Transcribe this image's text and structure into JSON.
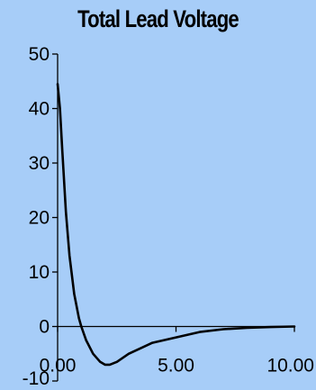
{
  "chart_data": {
    "type": "line",
    "title": "Total Lead Voltage",
    "xlabel": "",
    "ylabel": "",
    "xlim": [
      0,
      10
    ],
    "ylim": [
      -10,
      50
    ],
    "x_ticks": [
      {
        "value": 0,
        "label": "0.00"
      },
      {
        "value": 5,
        "label": "5.00"
      },
      {
        "value": 10,
        "label": "10.00"
      }
    ],
    "y_ticks": [
      {
        "value": 50,
        "label": "50"
      },
      {
        "value": 40,
        "label": "40"
      },
      {
        "value": 30,
        "label": "30"
      },
      {
        "value": 20,
        "label": "20"
      },
      {
        "value": 10,
        "label": "10"
      },
      {
        "value": 0,
        "label": "0"
      },
      {
        "value": -10,
        "label": "-10"
      }
    ],
    "grid": false,
    "legend": "none",
    "series": [
      {
        "values": [
          {
            "x": 0.0,
            "y": 44.5
          },
          {
            "x": 0.1,
            "y": 40
          },
          {
            "x": 0.2,
            "y": 32
          },
          {
            "x": 0.35,
            "y": 21
          },
          {
            "x": 0.5,
            "y": 13
          },
          {
            "x": 0.7,
            "y": 6
          },
          {
            "x": 0.9,
            "y": 1.5
          },
          {
            "x": 1.0,
            "y": 0
          },
          {
            "x": 1.2,
            "y": -2.5
          },
          {
            "x": 1.5,
            "y": -5
          },
          {
            "x": 1.8,
            "y": -6.5
          },
          {
            "x": 2.0,
            "y": -7
          },
          {
            "x": 2.2,
            "y": -7
          },
          {
            "x": 2.5,
            "y": -6.5
          },
          {
            "x": 3.0,
            "y": -5
          },
          {
            "x": 3.5,
            "y": -4
          },
          {
            "x": 4.0,
            "y": -3
          },
          {
            "x": 5.0,
            "y": -2
          },
          {
            "x": 6.0,
            "y": -1
          },
          {
            "x": 7.0,
            "y": -0.5
          },
          {
            "x": 8.0,
            "y": -0.25
          },
          {
            "x": 9.0,
            "y": -0.1
          },
          {
            "x": 10.0,
            "y": 0
          }
        ]
      }
    ]
  },
  "colors": {
    "background": "#a7cdf8",
    "line": "#000000",
    "axis": "#000000"
  }
}
